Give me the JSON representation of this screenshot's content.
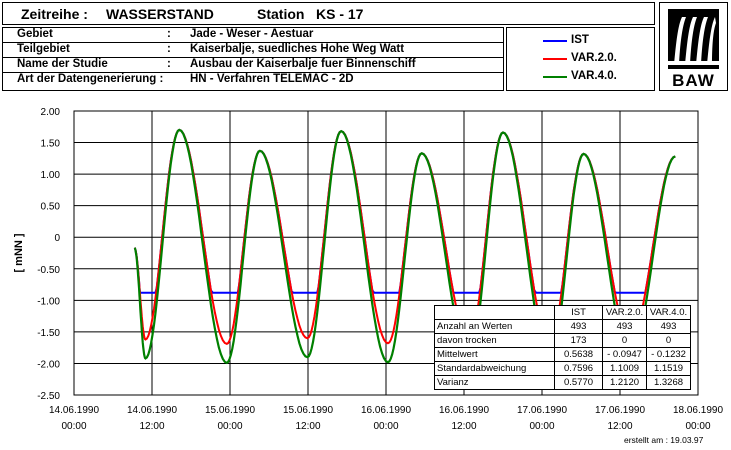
{
  "header": {
    "series_label": "Zeitreihe :",
    "series_name": "WASSERSTAND",
    "station_label": "Station",
    "station_id": "KS - 17"
  },
  "info": [
    {
      "key": "Gebiet",
      "sep": ":",
      "value": "Jade - Weser - Aestuar"
    },
    {
      "key": "Teilgebiet",
      "sep": ":",
      "value": "Kaiserbalje, suedliches Hohe Weg Watt"
    },
    {
      "key": "Name der Studie",
      "sep": ":",
      "value": "Ausbau der Kaiserbalje fuer Binnenschiff"
    },
    {
      "key": "Art der Datengenerierung :",
      "sep": "",
      "value": "HN - Verfahren  TELEMAC - 2D"
    }
  ],
  "logo": {
    "text": "BAW"
  },
  "colors": {
    "ist": "#0000ff",
    "var2": "#ff0000",
    "var4": "#008000",
    "grid": "#000000"
  },
  "footer": {
    "created": "erstellt am :   19.03.97"
  },
  "stats": {
    "headers": [
      "",
      "IST",
      "VAR.2.0.",
      "VAR.4.0."
    ],
    "rows": [
      [
        "Anzahl an Werten",
        "493",
        "493",
        "493"
      ],
      [
        "davon trocken",
        "173",
        "0",
        "0"
      ],
      [
        "Mittelwert",
        "0.5638",
        "- 0.0947",
        "- 0.1232"
      ],
      [
        "Standardabweichung",
        "0.7596",
        "1.1009",
        "1.1519"
      ],
      [
        "Varianz",
        "0.5770",
        "1.2120",
        "1.3268"
      ]
    ]
  },
  "chart_data": {
    "type": "line",
    "ylabel": "[  mNN  ]",
    "ylim": [
      -2.5,
      2.0
    ],
    "yticks": [
      2.0,
      1.5,
      1.0,
      0.5,
      0.0,
      -0.5,
      -1.0,
      -1.5,
      -2.0,
      -2.5
    ],
    "ytick_labels": [
      "2.00",
      "1.50",
      "1.00",
      "0.50",
      "0",
      "-0.50",
      "-1.00",
      "-1.50",
      "-2.00",
      "-2.50"
    ],
    "xlim_hours": [
      0,
      96
    ],
    "x_ticks": [
      {
        "h": 0,
        "date": "14.06.1990",
        "time": "00:00"
      },
      {
        "h": 12,
        "date": "14.06.1990",
        "time": "12:00"
      },
      {
        "h": 24,
        "date": "15.06.1990",
        "time": "00:00"
      },
      {
        "h": 36,
        "date": "15.06.1990",
        "time": "12:00"
      },
      {
        "h": 48,
        "date": "16.06.1990",
        "time": "00:00"
      },
      {
        "h": 60,
        "date": "16.06.1990",
        "time": "12:00"
      },
      {
        "h": 72,
        "date": "17.06.1990",
        "time": "00:00"
      },
      {
        "h": 84,
        "date": "17.06.1990",
        "time": "12:00"
      },
      {
        "h": 96,
        "date": "18.06.1990",
        "time": "00:00"
      }
    ],
    "grid": true,
    "legend_position": "top-right",
    "series": [
      {
        "name": "IST",
        "color": "#0000ff",
        "dry_level": -0.88
      },
      {
        "name": "VAR.2.0.",
        "color": "#ff0000"
      },
      {
        "name": "VAR.4.0.",
        "color": "#008000"
      }
    ],
    "tide": {
      "start_h": 9.3,
      "end_h": 92.5,
      "period_h": 12.42,
      "highs": [
        [
          16.2,
          1.7
        ],
        [
          28.6,
          1.37
        ],
        [
          41.1,
          1.68
        ],
        [
          53.5,
          1.33
        ],
        [
          66.0,
          1.66
        ],
        [
          78.4,
          1.32
        ]
      ],
      "lows": [
        [
          11.0,
          -1.92
        ],
        [
          23.5,
          -1.99
        ],
        [
          35.9,
          -1.9
        ],
        [
          48.3,
          -1.98
        ],
        [
          60.8,
          -1.92
        ],
        [
          73.2,
          -1.97
        ],
        [
          85.6,
          -1.9
        ]
      ],
      "start_value": -0.17,
      "end_value": 1.28,
      "var2_low_offset": 0.3
    }
  }
}
